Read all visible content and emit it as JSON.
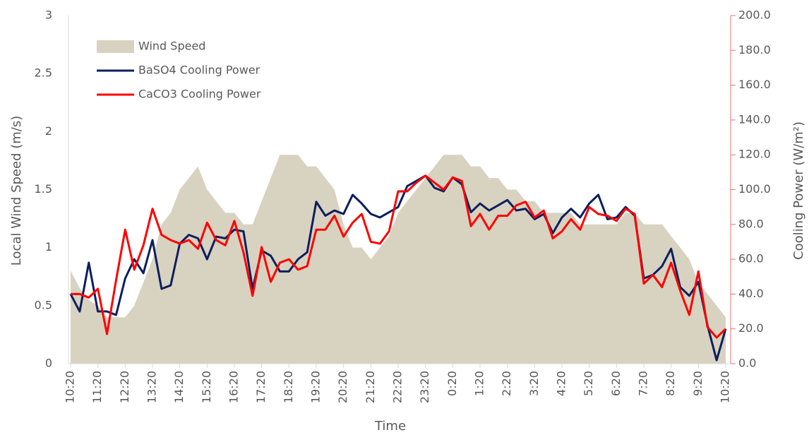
{
  "chart_data": {
    "type": "line",
    "x_label": "Time",
    "y_label": "Local Wind Speed (m/s)",
    "y2_label": "Cooling Power (W/m²)",
    "categories": [
      "10:20",
      null,
      null,
      "11:20",
      null,
      null,
      "12:20",
      null,
      null,
      "13:20",
      null,
      null,
      "14:20",
      null,
      null,
      "15:20",
      null,
      null,
      "16:20",
      null,
      null,
      "17:20",
      null,
      null,
      "18:20",
      null,
      null,
      "19:20",
      null,
      null,
      "20:20",
      null,
      null,
      "21:20",
      null,
      null,
      "22:20",
      null,
      null,
      "23:20",
      null,
      null,
      "0:20",
      null,
      null,
      "1:20",
      null,
      null,
      "2:20",
      null,
      null,
      "3:20",
      null,
      null,
      "4:20",
      null,
      null,
      "5:20",
      null,
      null,
      "6:20",
      null,
      null,
      "7:20",
      null,
      null,
      "8:20",
      null,
      null,
      "9:20",
      null,
      null,
      "10:20"
    ],
    "series": [
      {
        "name": "Wind Speed",
        "kind": "area",
        "color": "#d8d2c0",
        "values": [
          0.8,
          0.65,
          0.55,
          0.5,
          0.4,
          0.4,
          0.4,
          0.5,
          0.7,
          0.9,
          1.2,
          1.3,
          1.5,
          1.6,
          1.7,
          1.5,
          1.4,
          1.3,
          1.3,
          1.2,
          1.2,
          1.4,
          1.6,
          1.8,
          1.8,
          1.8,
          1.7,
          1.7,
          1.6,
          1.5,
          1.2,
          1.0,
          1.0,
          0.9,
          1.0,
          1.1,
          1.3,
          1.4,
          1.5,
          1.6,
          1.7,
          1.8,
          1.8,
          1.8,
          1.7,
          1.7,
          1.6,
          1.6,
          1.5,
          1.5,
          1.4,
          1.4,
          1.3,
          1.3,
          1.3,
          1.3,
          1.2,
          1.2,
          1.2,
          1.2,
          1.2,
          1.3,
          1.3,
          1.2,
          1.2,
          1.2,
          1.1,
          1.0,
          0.9,
          0.7,
          0.6,
          0.5,
          0.4
        ]
      },
      {
        "name": "BaSO4 Cooling Power",
        "kind": "line",
        "axis": "y2",
        "color": "#0c1f5e",
        "values": [
          40,
          30,
          58,
          30,
          30,
          28,
          49,
          60,
          52,
          71,
          43,
          45,
          69,
          74,
          72,
          60,
          73,
          72,
          77,
          76,
          43,
          65,
          62,
          53,
          53,
          60,
          64,
          93,
          85,
          88,
          86,
          97,
          92,
          86,
          84,
          87,
          90,
          102,
          105,
          108,
          101,
          99,
          107,
          103,
          87,
          92,
          88,
          91,
          94,
          88,
          89,
          83,
          86,
          75,
          84,
          89,
          84,
          92,
          97,
          83,
          84,
          90,
          85,
          49,
          51,
          56,
          66,
          44,
          39,
          47,
          22,
          2,
          20
        ]
      },
      {
        "name": "CaCO3 Cooling Power",
        "kind": "line",
        "axis": "y2",
        "color": "#ff0000",
        "values": [
          40,
          40,
          38,
          43,
          17,
          48,
          77,
          54,
          68,
          89,
          74,
          71,
          69,
          71,
          66,
          81,
          71,
          68,
          82,
          64,
          39,
          67,
          47,
          58,
          60,
          54,
          56,
          77,
          77,
          85,
          73,
          81,
          86,
          70,
          69,
          76,
          99,
          99,
          104,
          108,
          104,
          100,
          107,
          105,
          79,
          86,
          77,
          85,
          85,
          91,
          93,
          84,
          88,
          72,
          76,
          83,
          77,
          90,
          86,
          85,
          82,
          89,
          86,
          46,
          51,
          44,
          58,
          42,
          28,
          53,
          21,
          15,
          20
        ]
      }
    ],
    "ylim": [
      0,
      3
    ],
    "yticks": [
      0,
      0.5,
      1,
      1.5,
      2,
      2.5,
      3
    ],
    "y2lim": [
      0,
      200
    ],
    "y2ticks": [
      {
        "value": 0,
        "label": "0.0"
      },
      {
        "value": 20,
        "label": "20.0"
      },
      {
        "value": 40,
        "label": "40.0"
      },
      {
        "value": 60,
        "label": "60.0"
      },
      {
        "value": 80,
        "label": "80.0"
      },
      {
        "value": 100,
        "label": "100.0"
      },
      {
        "value": 120,
        "label": "120.0"
      },
      {
        "value": 140,
        "label": "140.0"
      },
      {
        "value": 160,
        "label": "160.0"
      },
      {
        "value": 180,
        "label": "180.0"
      },
      {
        "value": 200,
        "label": "200.0"
      }
    ],
    "y2_axis_color": "#e57373",
    "grid": false,
    "legend": "top-left"
  }
}
